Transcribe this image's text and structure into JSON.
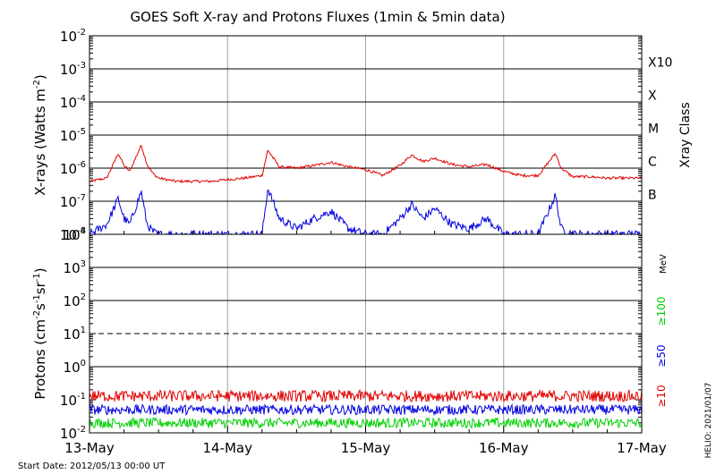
{
  "chart_data": [
    {
      "type": "line",
      "title": "GOES Soft X-ray and Protons Fluxes   (1min & 5min data)",
      "ylabel_main": "X-rays (Watts m",
      "ylabel_exp": "-2",
      "ylabel_close": ")",
      "yscale": "log",
      "ylim": [
        1e-08,
        0.01
      ],
      "y_ticks": [
        {
          "value": 1e-08,
          "base": "10",
          "exp": "-8"
        },
        {
          "value": 1e-07,
          "base": "10",
          "exp": "-7"
        },
        {
          "value": 1e-06,
          "base": "10",
          "exp": "-6"
        },
        {
          "value": 1e-05,
          "base": "10",
          "exp": "-5"
        },
        {
          "value": 0.0001,
          "base": "10",
          "exp": "-4"
        },
        {
          "value": 0.001,
          "base": "10",
          "exp": "-3"
        },
        {
          "value": 0.01,
          "base": "10",
          "exp": "-2"
        }
      ],
      "classes_label": "Xray Class",
      "classes": [
        {
          "label": "B",
          "value": 1e-07
        },
        {
          "label": "C",
          "value": 1e-06
        },
        {
          "label": "M",
          "value": 1e-05
        },
        {
          "label": "X",
          "value": 0.0001
        },
        {
          "label": "X10",
          "value": 0.001
        }
      ],
      "series": [
        {
          "color": "#e00000",
          "x": [
            "05-13 00:00",
            "05-13 03:00",
            "05-13 05:00",
            "05-13 06:00",
            "05-13 07:00",
            "05-13 09:00",
            "05-13 10:00",
            "05-13 11:00",
            "05-13 12:00",
            "05-13 15:00",
            "05-13 18:00",
            "05-13 21:00",
            "05-14 00:00",
            "05-14 03:00",
            "05-14 06:00",
            "05-14 07:00",
            "05-14 09:00",
            "05-14 12:00",
            "05-14 15:00",
            "05-14 18:00",
            "05-14 21:00",
            "05-15 00:00",
            "05-15 03:00",
            "05-15 06:00",
            "05-15 08:00",
            "05-15 10:00",
            "05-15 12:00",
            "05-15 15:00",
            "05-15 18:00",
            "05-15 21:00",
            "05-16 00:00",
            "05-16 03:00",
            "05-16 06:00",
            "05-16 09:00",
            "05-16 10:00",
            "05-16 12:00",
            "05-16 15:00",
            "05-16 18:00",
            "05-16 21:00",
            "05-17 00:00"
          ],
          "y": [
            4e-07,
            5e-07,
            2.8e-06,
            1.2e-06,
            8e-07,
            5e-06,
            1.3e-06,
            7e-07,
            5e-07,
            4e-07,
            4e-07,
            4e-07,
            4.5e-07,
            5e-07,
            6e-07,
            3.5e-06,
            1.1e-06,
            1e-06,
            1.2e-06,
            1.5e-06,
            1.1e-06,
            9e-07,
            6e-07,
            1.2e-06,
            2.5e-06,
            1.6e-06,
            2e-06,
            1.3e-06,
            1.1e-06,
            1.3e-06,
            8e-07,
            6e-07,
            6e-07,
            2.8e-06,
            1e-06,
            5.5e-07,
            5.5e-07,
            5e-07,
            5e-07,
            5e-07
          ]
        },
        {
          "color": "#0000e0",
          "x": [
            "05-13 00:00",
            "05-13 03:00",
            "05-13 05:00",
            "05-13 06:00",
            "05-13 07:00",
            "05-13 09:00",
            "05-13 10:00",
            "05-13 11:00",
            "05-13 12:00",
            "05-13 15:00",
            "05-13 18:00",
            "05-13 21:00",
            "05-14 00:00",
            "05-14 03:00",
            "05-14 06:00",
            "05-14 07:00",
            "05-14 09:00",
            "05-14 12:00",
            "05-14 15:00",
            "05-14 18:00",
            "05-14 21:00",
            "05-15 00:00",
            "05-15 03:00",
            "05-15 06:00",
            "05-15 08:00",
            "05-15 10:00",
            "05-15 12:00",
            "05-15 15:00",
            "05-15 18:00",
            "05-15 21:00",
            "05-16 00:00",
            "05-16 03:00",
            "05-16 06:00",
            "05-16 09:00",
            "05-16 10:00",
            "05-16 12:00",
            "05-16 15:00",
            "05-16 18:00",
            "05-16 21:00",
            "05-17 00:00"
          ],
          "y": [
            1e-08,
            2e-08,
            1.2e-07,
            3e-08,
            2e-08,
            2e-07,
            2e-08,
            1.2e-08,
            1e-08,
            1e-08,
            1e-08,
            1e-08,
            1e-08,
            1e-08,
            1e-08,
            2.5e-07,
            3e-08,
            1.5e-08,
            3e-08,
            5e-08,
            1.5e-08,
            1e-08,
            1e-08,
            3e-08,
            8e-08,
            3e-08,
            6e-08,
            2e-08,
            1.5e-08,
            3e-08,
            1e-08,
            1e-08,
            1e-08,
            1.5e-07,
            1.5e-08,
            1e-08,
            1e-08,
            1e-08,
            1e-08,
            1e-08
          ]
        }
      ]
    },
    {
      "type": "line",
      "ylabel_main": "Protons (cm",
      "ylabel_e1": "-2",
      "ylabel_s": "s",
      "ylabel_e2": "-1",
      "ylabel_sr": "sr",
      "ylabel_e3": "-1",
      "ylabel_close": ")",
      "yscale": "log",
      "ylim": [
        0.01,
        10000
      ],
      "y_ticks": [
        {
          "value": 0.01,
          "base": "10",
          "exp": "-2"
        },
        {
          "value": 0.1,
          "base": "10",
          "exp": "-1"
        },
        {
          "value": 1,
          "base": "10",
          "exp": "0"
        },
        {
          "value": 10,
          "base": "10",
          "exp": "1"
        },
        {
          "value": 100,
          "base": "10",
          "exp": "2"
        },
        {
          "value": 1000,
          "base": "10",
          "exp": "3"
        },
        {
          "value": 10000,
          "base": "10",
          "exp": "4"
        }
      ],
      "threshold": 10,
      "energy_unit": "MeV",
      "series": [
        {
          "name": "≥100",
          "color": "#00d000",
          "y_typical": 0.02
        },
        {
          "name": "≥50",
          "color": "#0000e0",
          "y_typical": 0.05
        },
        {
          "name": "≥10",
          "color": "#e00000",
          "y_typical": 0.13
        }
      ]
    }
  ],
  "x_axis": {
    "ticks": [
      "13-May",
      "14-May",
      "15-May",
      "16-May",
      "17-May"
    ],
    "range": [
      "2012-05-13 00:00",
      "2012-05-17 00:00"
    ]
  },
  "footer": {
    "start_date": "Start Date: 2012/05/13 00:00 UT",
    "stamp": "HELIO: 2021/01/07"
  },
  "colors": {
    "xray_long": "#e00000",
    "xray_short": "#0000e0",
    "grid": "#000000",
    "day_line": "#a0a0a0"
  }
}
